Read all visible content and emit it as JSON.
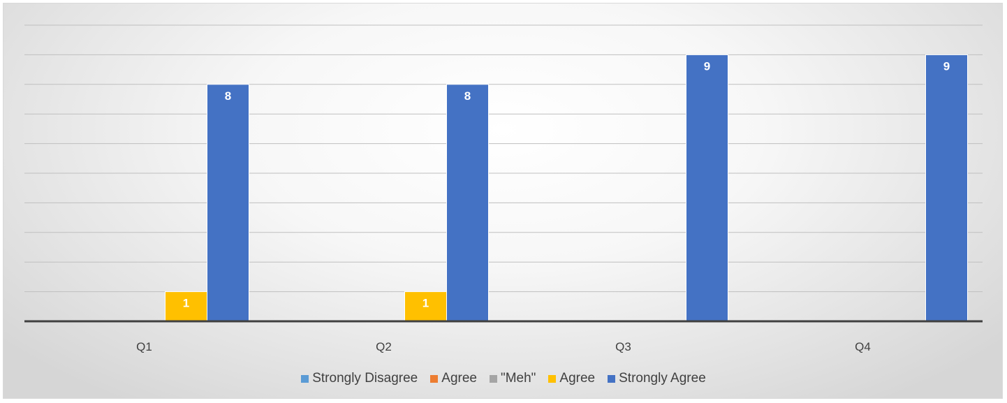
{
  "chart_data": {
    "type": "bar",
    "title": "",
    "xlabel": "",
    "ylabel": "",
    "categories": [
      "Q1",
      "Q2",
      "Q3",
      "Q4"
    ],
    "ylim": [
      0,
      10
    ],
    "grid": true,
    "legend_position": "bottom",
    "series": [
      {
        "name": "Strongly Disagree",
        "color": "#5b9bd5",
        "values": [
          0,
          0,
          0,
          0
        ]
      },
      {
        "name": "Agree",
        "color": "#ed7d31",
        "values": [
          0,
          0,
          0,
          0
        ]
      },
      {
        "name": "\"Meh\"",
        "color": "#a5a5a5",
        "values": [
          0,
          0,
          0,
          0
        ]
      },
      {
        "name": "Agree",
        "color": "#ffc000",
        "values": [
          1,
          1,
          0,
          0
        ]
      },
      {
        "name": "Strongly Agree",
        "color": "#4472c4",
        "values": [
          8,
          8,
          9,
          9
        ]
      }
    ]
  }
}
